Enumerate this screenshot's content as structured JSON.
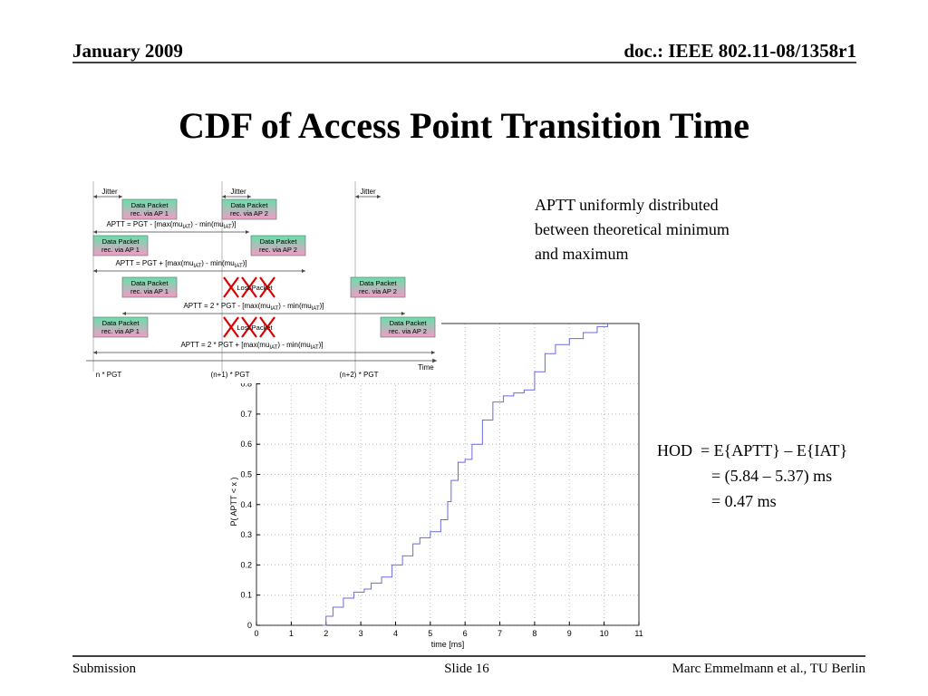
{
  "header": {
    "date": "January 2009",
    "doc": "doc.: IEEE 802.11-08/1358r1"
  },
  "title": "CDF of Access Point Transition Time",
  "notes": {
    "aptt": [
      "APTT uniformly distributed",
      "between theoretical minimum",
      "and maximum"
    ],
    "hod": [
      "HOD  = E{APTT} – E{IAT}",
      "= (5.84 – 5.37) ms",
      "= 0.47 ms"
    ]
  },
  "diagram": {
    "jitter": [
      "Jitter",
      "Jitter",
      "Jitter"
    ],
    "boxes": [
      {
        "line1": "Data Packet",
        "line2": "rec. via AP 1"
      },
      {
        "line1": "Data Packet",
        "line2": "rec. via AP 2"
      },
      {
        "line1": "Data Packet",
        "line2": "rec. via AP 1"
      },
      {
        "line1": "Data Packet",
        "line2": "rec. via AP 2"
      },
      {
        "line1": "Data Packet",
        "line2": "rec. via AP 1"
      },
      {
        "line1": "Data Packet",
        "line2": "rec. via AP 2"
      },
      {
        "line1": "Data Packet",
        "line2": "rec. via AP 1"
      },
      {
        "line1": "Data Packet",
        "line2": "rec. via AP 2"
      }
    ],
    "lost": [
      "Lost Packet",
      "Lost Packet"
    ],
    "formulas": [
      [
        "APTT = PGT - [max(mu",
        "IAT",
        ") - min(mu",
        "IAT",
        ")]"
      ],
      [
        "APTT = PGT + [max(mu",
        "IAT",
        ") - min(mu",
        "IAT",
        ")]"
      ],
      [
        "APTT = 2 * PGT - [max(mu",
        "IAT",
        ") - min(mu",
        "IAT",
        ")]"
      ],
      [
        "APTT = 2 * PGT + [max(mu",
        "IAT",
        ") - min(mu",
        "IAT",
        ")]"
      ]
    ],
    "time": "Time",
    "ticks": [
      "n * PGT",
      "(n+1) * PGT",
      "(n+2) * PGT"
    ]
  },
  "chart_data": {
    "type": "line",
    "xlabel": "time [ms]",
    "ylabel": "P( APTT < x )",
    "color": "#6a6ae0",
    "grid": true,
    "step": true,
    "x": [
      1.9,
      2.0,
      2.2,
      2.5,
      2.8,
      3.1,
      3.3,
      3.6,
      3.9,
      4.2,
      4.5,
      4.7,
      5.0,
      5.3,
      5.5,
      5.6,
      5.8,
      6.0,
      6.2,
      6.5,
      6.8,
      7.1,
      7.4,
      7.7,
      8.0,
      8.3,
      8.6,
      9.0,
      9.4,
      9.8,
      10.1
    ],
    "values": [
      0,
      0.03,
      0.06,
      0.09,
      0.11,
      0.12,
      0.14,
      0.16,
      0.2,
      0.23,
      0.27,
      0.29,
      0.31,
      0.35,
      0.41,
      0.48,
      0.54,
      0.55,
      0.6,
      0.68,
      0.74,
      0.76,
      0.77,
      0.78,
      0.84,
      0.9,
      0.93,
      0.95,
      0.97,
      0.99,
      1.0
    ],
    "xlim": [
      0,
      11
    ],
    "ylim": [
      0,
      1
    ],
    "xticks": [
      0,
      1,
      2,
      3,
      4,
      5,
      6,
      7,
      8,
      9,
      10,
      11
    ],
    "yticks": [
      0,
      0.1,
      0.2,
      0.3,
      0.4,
      0.5,
      0.6,
      0.7,
      0.8
    ]
  },
  "footer": {
    "left": "Submission",
    "center": "Slide 16",
    "right": "Marc Emmelmann et al., TU Berlin"
  }
}
